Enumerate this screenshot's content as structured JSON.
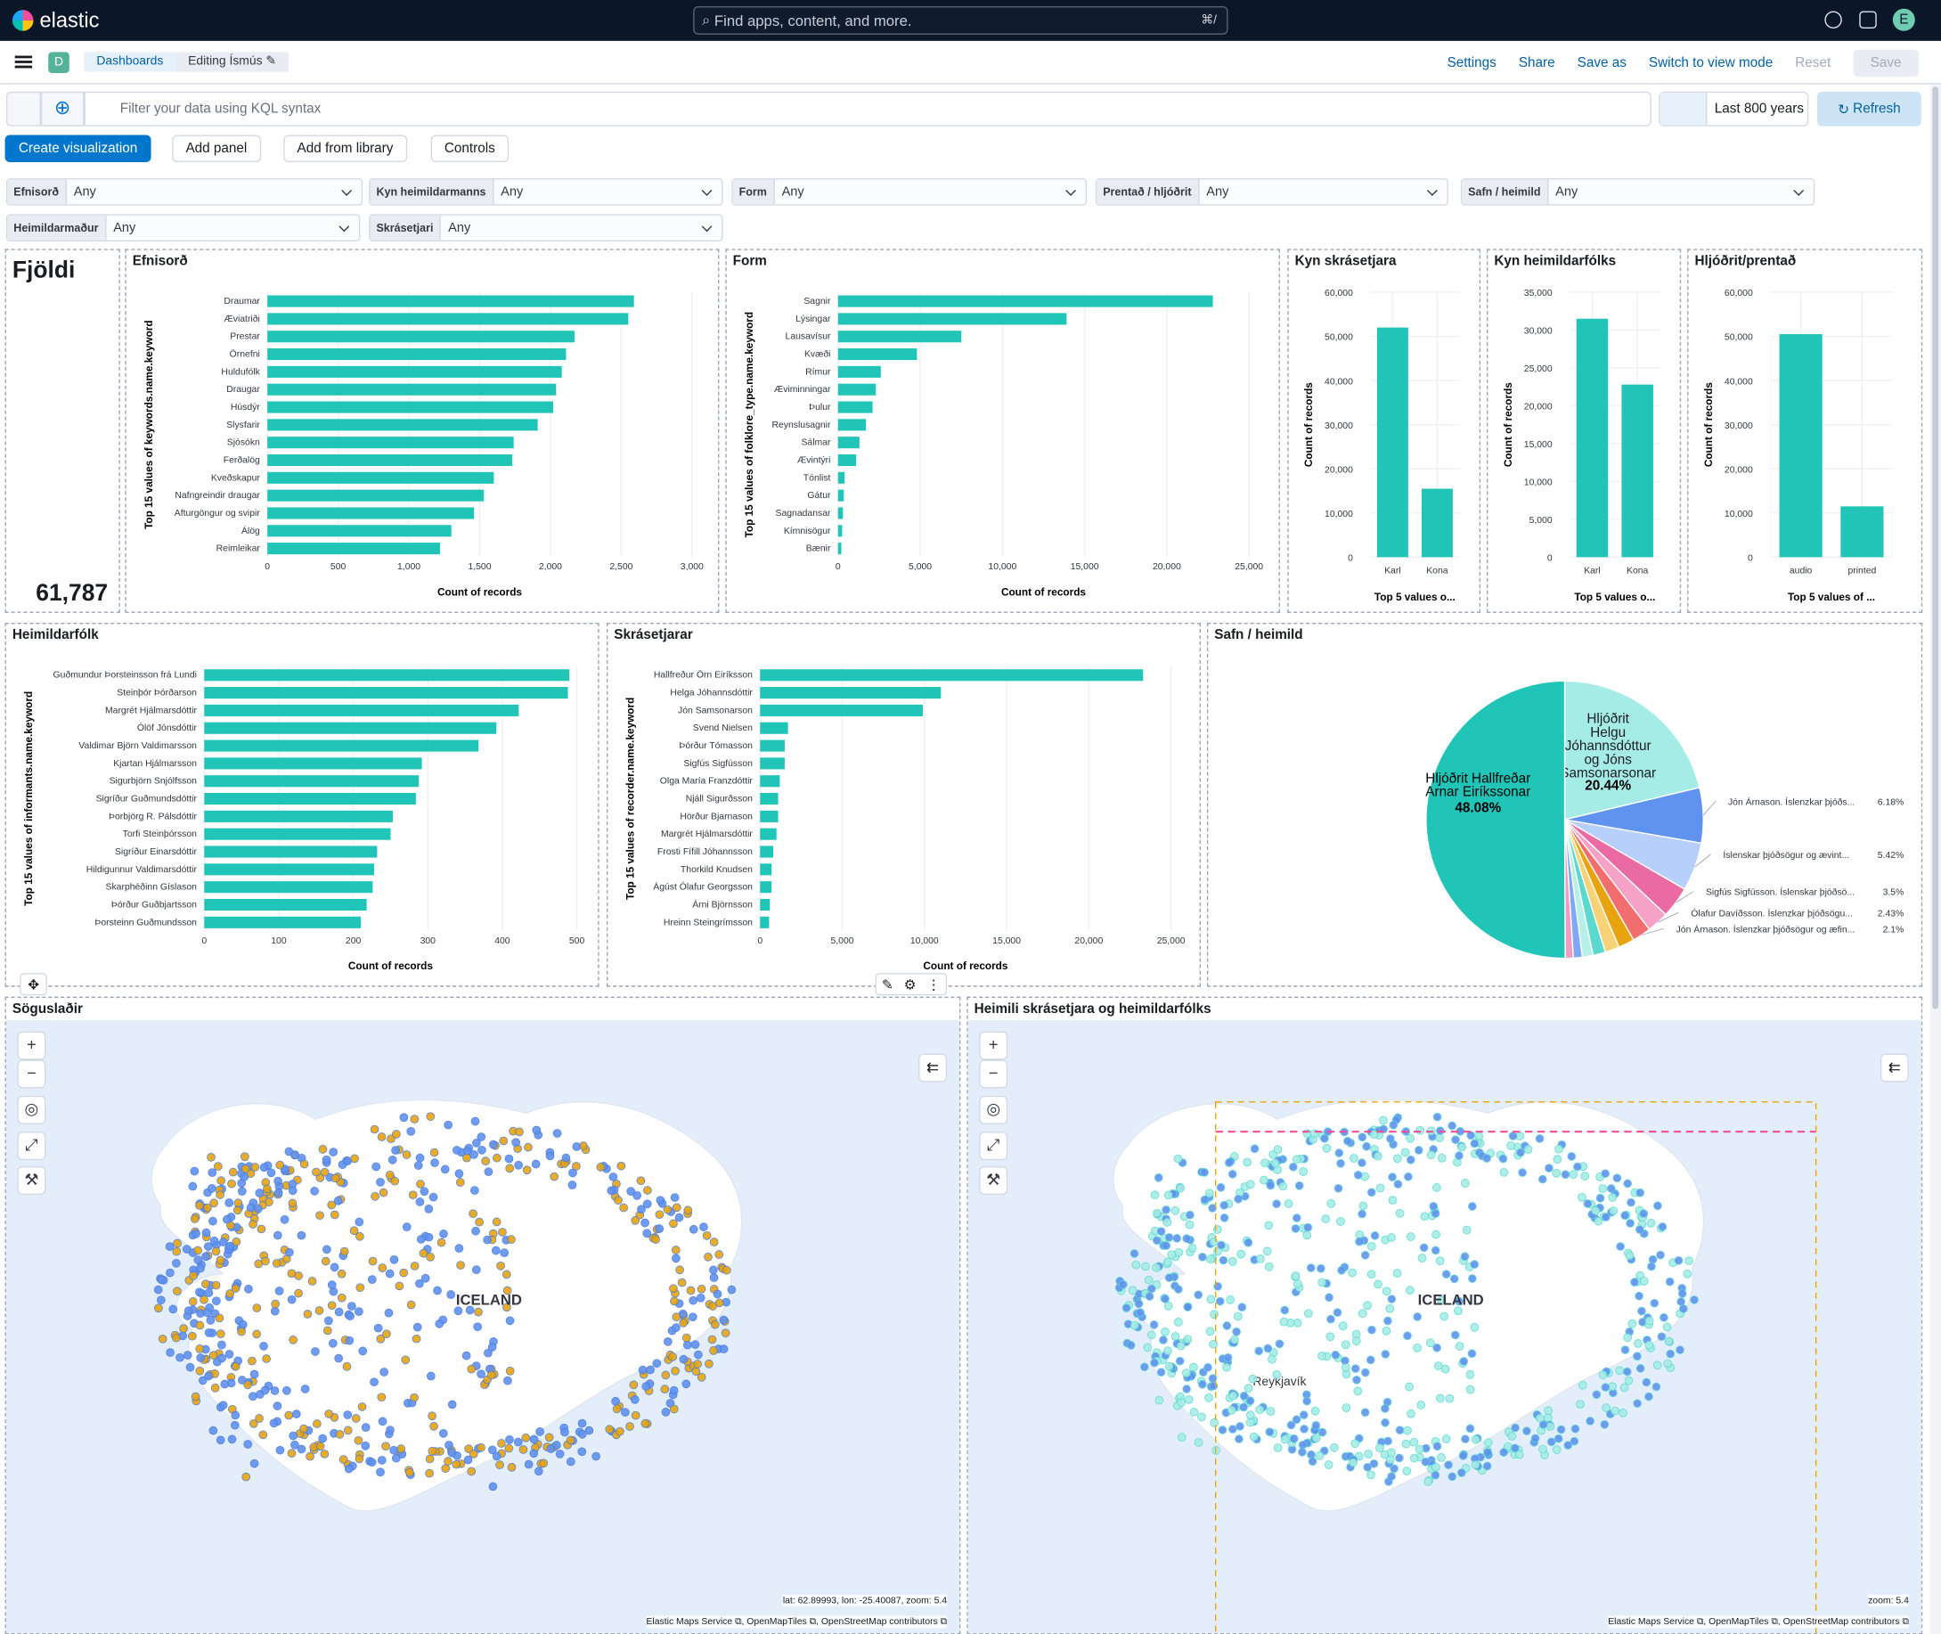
{
  "app": {
    "name": "elastic",
    "search_placeholder": "Find apps, content, and more.",
    "search_shortcut": "⌘/",
    "avatar": "E"
  },
  "nav": {
    "space_badge": "D",
    "breadcrumbs": [
      "Dashboards",
      "Editing Ísmús ✎"
    ],
    "links": {
      "settings": "Settings",
      "share": "Share",
      "save_as": "Save as",
      "switch": "Switch to view mode",
      "reset": "Reset",
      "save": "Save"
    }
  },
  "query": {
    "placeholder": "Filter your data using KQL syntax",
    "date": "Last 800 years",
    "refresh": "Refresh"
  },
  "toolbar": {
    "create": "Create visualization",
    "add_panel": "Add panel",
    "add_library": "Add from library",
    "controls": "Controls"
  },
  "controls": [
    {
      "label": "Efnisorð",
      "value": "Any"
    },
    {
      "label": "Kyn heimildarmanns",
      "value": "Any"
    },
    {
      "label": "Form",
      "value": "Any"
    },
    {
      "label": "Prentað / hljóðrit",
      "value": "Any"
    },
    {
      "label": "Safn / heimild",
      "value": "Any"
    },
    {
      "label": "Heimildarmaður",
      "value": "Any"
    },
    {
      "label": "Skrásetjari",
      "value": "Any"
    }
  ],
  "metric": {
    "title": "Fjöldi",
    "value": "61,787"
  },
  "panels": {
    "efnisord": "Efnisorð",
    "form": "Form",
    "kyn_skras": "Kyn skrásetjara",
    "kyn_heim": "Kyn heimildarfólks",
    "hljodrit": "Hljóðrit/prentað",
    "heimildarfolk": "Heimildarfólk",
    "skrasetjarar": "Skrásetjarar",
    "safn": "Safn / heimild",
    "map1": "Söguslaðir",
    "map2": "Heimili skrásetjara og heimildarfólks"
  },
  "colors": {
    "bar": "#20c5b7",
    "accent": "#0077cc"
  },
  "chart_data": [
    {
      "id": "efnisord",
      "type": "bar",
      "orientation": "horizontal",
      "categories": [
        "Draumar",
        "Æviatriði",
        "Prestar",
        "Örnefni",
        "Huldufólk",
        "Draugar",
        "Húsdýr",
        "Slysfarir",
        "Sjósókn",
        "Ferðalög",
        "Kveðskapur",
        "Nafngreindir draugar",
        "Afturgöngur og svipir",
        "Álög",
        "Reimleikar"
      ],
      "values": [
        2590,
        2550,
        2170,
        2110,
        2080,
        2040,
        2020,
        1910,
        1740,
        1730,
        1600,
        1530,
        1460,
        1300,
        1220
      ],
      "xlabel": "Count of records",
      "ylabel": "Top 15 values of keywords.name.keyword",
      "xlim": [
        0,
        3000
      ],
      "ticks": [
        0,
        500,
        1000,
        1500,
        2000,
        2500,
        3000
      ],
      "tick_labels": [
        "0",
        "500",
        "1,000",
        "1,500",
        "2,000",
        "2,500",
        "3,000"
      ]
    },
    {
      "id": "form",
      "type": "bar",
      "orientation": "horizontal",
      "categories": [
        "Sagnir",
        "Lýsingar",
        "Lausavísur",
        "Kvæði",
        "Rímur",
        "Æviminningar",
        "Þulur",
        "Reynslusagnir",
        "Sálmar",
        "Ævintýri",
        "Tónlist",
        "Gátur",
        "Sagnadansar",
        "Kímnisögur",
        "Bænir"
      ],
      "values": [
        22800,
        13900,
        7500,
        4800,
        2600,
        2300,
        2100,
        1700,
        1300,
        1100,
        400,
        350,
        300,
        250,
        200
      ],
      "xlabel": "Count of records",
      "ylabel": "Top 15 values of folklore_type.name.keyword",
      "xlim": [
        0,
        25000
      ],
      "ticks": [
        0,
        5000,
        10000,
        15000,
        20000,
        25000
      ],
      "tick_labels": [
        "0",
        "5,000",
        "10,000",
        "15,000",
        "20,000",
        "25,000"
      ]
    },
    {
      "id": "kyn_skras",
      "type": "bar",
      "categories": [
        "Karl",
        "Kona"
      ],
      "values": [
        52000,
        15500
      ],
      "xlabel": "Top 5 values o...",
      "ylabel": "Count of records",
      "ylim": [
        0,
        60000
      ],
      "ticks": [
        0,
        10000,
        20000,
        30000,
        40000,
        50000,
        60000
      ],
      "tick_labels": [
        "0",
        "10,000",
        "20,000",
        "30,000",
        "40,000",
        "50,000",
        "60,000"
      ]
    },
    {
      "id": "kyn_heim",
      "type": "bar",
      "categories": [
        "Karl",
        "Kona"
      ],
      "values": [
        31500,
        22800
      ],
      "xlabel": "Top 5 values o...",
      "ylabel": "Count of records",
      "ylim": [
        0,
        35000
      ],
      "ticks": [
        0,
        5000,
        10000,
        15000,
        20000,
        25000,
        30000,
        35000
      ],
      "tick_labels": [
        "0",
        "5,000",
        "10,000",
        "15,000",
        "20,000",
        "25,000",
        "30,000",
        "35,000"
      ]
    },
    {
      "id": "hljodrit",
      "type": "bar",
      "categories": [
        "audio",
        "printed"
      ],
      "values": [
        50500,
        11500
      ],
      "xlabel": "Top 5 values of ...",
      "ylabel": "Count of records",
      "ylim": [
        0,
        60000
      ],
      "ticks": [
        0,
        10000,
        20000,
        30000,
        40000,
        50000,
        60000
      ],
      "tick_labels": [
        "0",
        "10,000",
        "20,000",
        "30,000",
        "40,000",
        "50,000",
        "60,000"
      ]
    },
    {
      "id": "heimildarfolk",
      "type": "bar",
      "orientation": "horizontal",
      "categories": [
        "Guðmundur Þorsteinsson frá Lundi",
        "Steinþór Þórðarson",
        "Margrét Hjálmarsdóttir",
        "Ólöf Jónsdóttir",
        "Valdimar Björn Valdimarsson",
        "Kjartan Hjálmarsson",
        "Sigurbjörn Snjólfsson",
        "Sigríður Guðmundsdóttir",
        "Þorbjörg R. Pálsdóttir",
        "Torfi Steinþórsson",
        "Sigríður Einarsdóttir",
        "Hildigunnur Valdimarsdóttir",
        "Skarphéðinn Gíslason",
        "Þórður Guðbjartsson",
        "Þorsteinn Guðmundsson"
      ],
      "values": [
        490,
        488,
        422,
        392,
        368,
        292,
        288,
        284,
        253,
        250,
        232,
        228,
        226,
        218,
        210
      ],
      "xlabel": "Count of records",
      "ylabel": "Top 15 values of informants.name.keyword",
      "xlim": [
        0,
        500
      ],
      "ticks": [
        0,
        100,
        200,
        300,
        400,
        500
      ],
      "tick_labels": [
        "0",
        "100",
        "200",
        "300",
        "400",
        "500"
      ]
    },
    {
      "id": "skrasetjarar",
      "type": "bar",
      "orientation": "horizontal",
      "categories": [
        "Hallfreður Örn Eiríksson",
        "Helga Jóhannsdóttir",
        "Jón Samsonarson",
        "Svend Nielsen",
        "Þórður Tómasson",
        "Sigfús Sigfússon",
        "Olga María Franzdóttir",
        "Njáll Sigurðsson",
        "Hörður Bjarnason",
        "Margrét Hjálmarsdóttir",
        "Frosti Fífill Jóhannsson",
        "Thorkild Knudsen",
        "Ágúst Ólafur Georgsson",
        "Árni Björnsson",
        "Hreinn Steingrímsson"
      ],
      "values": [
        23300,
        11000,
        9900,
        1700,
        1500,
        1500,
        1200,
        1100,
        1100,
        1000,
        800,
        700,
        700,
        600,
        550
      ],
      "xlabel": "Count of records",
      "ylabel": "Top 15 values of recorder.name.keyword",
      "xlim": [
        0,
        25000
      ],
      "ticks": [
        0,
        5000,
        10000,
        15000,
        20000,
        25000
      ],
      "tick_labels": [
        "0",
        "5,000",
        "10,000",
        "15,000",
        "20,000",
        "25,000"
      ]
    },
    {
      "id": "safn",
      "type": "pie",
      "slices": [
        {
          "label": "Hljóðrit Helgu Jóhannsdóttur og Jóns Samsonarsonar",
          "value": 20.44,
          "pct": "20.44%",
          "color": "#a6ece6"
        },
        {
          "label": "Jón Árnason. Íslenzkar þjóðs...",
          "value": 6.18,
          "pct": "6.18%",
          "color": "#6092f0"
        },
        {
          "label": "Íslenskar þjóðsögur og ævint...",
          "value": 5.42,
          "pct": "5.42%",
          "color": "#b7cffb"
        },
        {
          "label": "Sigfús Sigfússon. Íslenskar þjóðsö...",
          "value": 3.5,
          "pct": "3.5%",
          "color": "#ea6aa4"
        },
        {
          "label": "Ólafur Davíðsson. Íslenzkar þjóðsögu...",
          "value": 2.43,
          "pct": "2.43%",
          "color": "#f5a2c6"
        },
        {
          "label": "Jón Árnason. Íslenzkar þjóðsögur og æfin...",
          "value": 2.1,
          "pct": "2.1%",
          "color": "#f26e6e"
        },
        {
          "label": "",
          "value": 1.8,
          "color": "#e8a40e"
        },
        {
          "label": "",
          "value": 1.6,
          "color": "#f7d277"
        },
        {
          "label": "",
          "value": 1.4,
          "color": "#5bd9cf"
        },
        {
          "label": "",
          "value": 1.2,
          "color": "#b7efe9"
        },
        {
          "label": "",
          "value": 1.0,
          "color": "#7fa9f5"
        },
        {
          "label": "",
          "value": 0.9,
          "color": "#f49bc3"
        },
        {
          "label": "Hljóðrit Hallfreðar Arnar Eiríkssonar",
          "value": 48.08,
          "pct": "48.08%",
          "color": "#20c5b7"
        }
      ]
    }
  ],
  "maps": {
    "map1": {
      "label": "ICELAND",
      "info": "lat: 62.89993, lon: -25.40087, zoom: 5.4",
      "attrib": "Elastic Maps Service ⧉, OpenMapTiles ⧉, OpenStreetMap contributors ⧉"
    },
    "map2": {
      "label": "ICELAND",
      "city": "Reykjavík",
      "info": "zoom: 5.4",
      "attrib": "Elastic Maps Service ⧉, OpenMapTiles ⧉, OpenStreetMap contributors ⧉"
    }
  }
}
